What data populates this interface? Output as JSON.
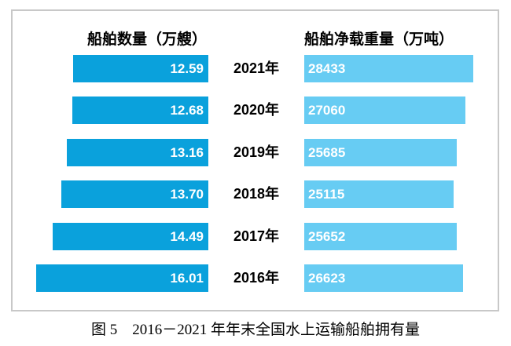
{
  "figure": {
    "left_header": "船舶数量（万艘）",
    "right_header": "船舶净载重量（万吨）",
    "caption": "图 5　2016－2021 年年末全国水上运输船舶拥有量"
  },
  "colors": {
    "left_bar": "#0aa1dc",
    "right_bar": "#67ccf3",
    "value_text": "#ffffff",
    "frame_border": "#c8c8c8"
  },
  "chart_data": {
    "type": "bar",
    "orientation": "horizontal-paired",
    "title": "图 5　2016－2021 年年末全国水上运输船舶拥有量",
    "categories": [
      "2021年",
      "2020年",
      "2019年",
      "2018年",
      "2017年",
      "2016年"
    ],
    "series": [
      {
        "name": "船舶数量（万艘）",
        "unit": "万艘",
        "values": [
          12.59,
          12.68,
          13.16,
          13.7,
          14.49,
          16.01
        ],
        "value_labels": [
          "12.59",
          "12.68",
          "13.16",
          "13.70",
          "14.49",
          "16.01"
        ]
      },
      {
        "name": "船舶净载重量（万吨）",
        "unit": "万吨",
        "values": [
          28433,
          27060,
          25685,
          25115,
          25652,
          26623
        ],
        "value_labels": [
          "28433",
          "27060",
          "25685",
          "25115",
          "25652",
          "26623"
        ]
      }
    ],
    "xlim_left_series": [
      0,
      16.5
    ],
    "xlim_right_series": [
      0,
      29000
    ],
    "grid": false,
    "legend_position": "top-as-column-headers",
    "value_labels_inside_bars": true
  }
}
